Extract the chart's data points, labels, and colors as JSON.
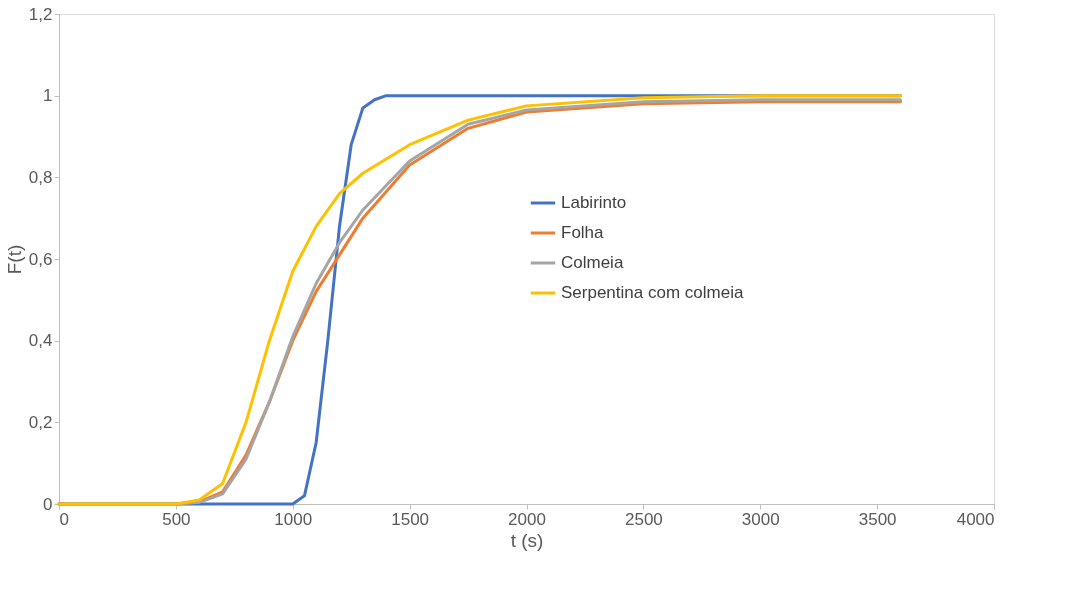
{
  "chart_data": {
    "type": "line",
    "xlabel": "t (s)",
    "ylabel": "F(t)",
    "xlim": [
      0,
      4000
    ],
    "xticks": [
      0,
      500,
      1000,
      1500,
      2000,
      2500,
      3000,
      3500,
      4000
    ],
    "ylim": [
      0,
      1.2
    ],
    "yticks": [
      0,
      {
        "value": 0.2,
        "label": "0,2"
      },
      {
        "value": 0.4,
        "label": "0,4"
      },
      {
        "value": 0.6,
        "label": "0,6"
      },
      {
        "value": 0.8,
        "label": "0,8"
      },
      1,
      {
        "value": 1.2,
        "label": "1,2"
      }
    ],
    "grid": false,
    "legend": "right",
    "marker": "none",
    "line_style": "solid",
    "series": [
      {
        "name": "Labirinto",
        "color": "#4472c4",
        "x": [
          0,
          500,
          1000,
          1050,
          1100,
          1150,
          1200,
          1250,
          1300,
          1350,
          1400,
          2000,
          3600
        ],
        "values": [
          0,
          0,
          0,
          0.02,
          0.15,
          0.4,
          0.68,
          0.88,
          0.97,
          0.99,
          1.0,
          1.0,
          1.0
        ]
      },
      {
        "name": "Folha",
        "color": "#ed7d31",
        "x": [
          0,
          500,
          600,
          700,
          800,
          900,
          1000,
          1100,
          1200,
          1300,
          1500,
          1750,
          2000,
          2500,
          3000,
          3600
        ],
        "values": [
          0,
          0,
          0.005,
          0.03,
          0.12,
          0.25,
          0.4,
          0.52,
          0.61,
          0.7,
          0.83,
          0.92,
          0.96,
          0.98,
          0.985,
          0.985
        ]
      },
      {
        "name": "Colmeia",
        "color": "#a5a5a5",
        "x": [
          0,
          500,
          600,
          700,
          800,
          900,
          1000,
          1100,
          1200,
          1300,
          1500,
          1750,
          2000,
          2500,
          3000,
          3600
        ],
        "values": [
          0,
          0,
          0.004,
          0.025,
          0.11,
          0.25,
          0.41,
          0.54,
          0.64,
          0.72,
          0.84,
          0.93,
          0.965,
          0.985,
          0.99,
          0.99
        ]
      },
      {
        "name": "Serpentina com colmeia",
        "color": "#ffc000",
        "x": [
          0,
          500,
          600,
          700,
          800,
          900,
          1000,
          1100,
          1200,
          1300,
          1500,
          1750,
          2000,
          2500,
          3000,
          3600
        ],
        "values": [
          0,
          0,
          0.01,
          0.05,
          0.2,
          0.4,
          0.57,
          0.68,
          0.76,
          0.81,
          0.88,
          0.94,
          0.975,
          0.995,
          1.0,
          1.0
        ]
      }
    ]
  }
}
